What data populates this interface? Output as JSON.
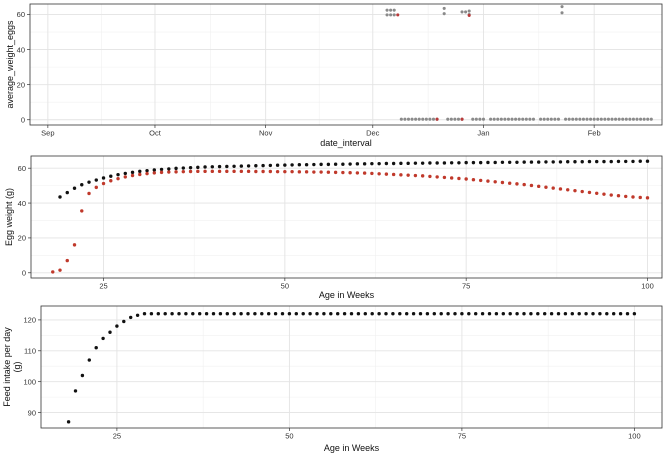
{
  "chart_data": [
    {
      "type": "scatter",
      "xlabel": "date_interval",
      "ylabel": "average_weight_eggs",
      "x_ticks": [
        "Sep",
        "Oct",
        "Nov",
        "Dec",
        "Jan",
        "Feb"
      ],
      "x_tick_dates": [
        "2023-09-01",
        "2023-10-01",
        "2023-11-01",
        "2023-12-01",
        "2024-01-01",
        "2024-02-01"
      ],
      "x_range": [
        "2023-08-27",
        "2024-02-20"
      ],
      "y_ticks": [
        "0",
        "20",
        "40",
        "60"
      ],
      "ylim": [
        -3,
        66
      ],
      "grid": true,
      "colors": {
        "black": "#222222",
        "grey": "#8a8a8a",
        "red": "#b83a3a"
      },
      "series": [
        {
          "color": "grey",
          "points": [
            [
              "2023-12-05",
              62.5
            ],
            [
              "2023-12-06",
              62.5
            ],
            [
              "2023-12-07",
              62.5
            ],
            [
              "2023-12-05",
              59.8
            ],
            [
              "2023-12-06",
              59.8
            ],
            [
              "2023-12-07",
              59.8
            ],
            [
              "2023-12-21",
              63.5
            ],
            [
              "2023-12-21",
              60.5
            ],
            [
              "2023-12-26",
              61.5
            ],
            [
              "2023-12-27",
              61.5
            ],
            [
              "2023-12-28",
              62.0
            ],
            [
              "2023-12-28",
              60.0
            ],
            [
              "2024-01-23",
              64.5
            ],
            [
              "2024-01-23",
              61.0
            ],
            [
              "2023-12-09",
              0.3
            ],
            [
              "2023-12-10",
              0.3
            ],
            [
              "2023-12-11",
              0.3
            ],
            [
              "2023-12-12",
              0.3
            ],
            [
              "2023-12-13",
              0.3
            ],
            [
              "2023-12-14",
              0.3
            ],
            [
              "2023-12-15",
              0.3
            ],
            [
              "2023-12-16",
              0.3
            ],
            [
              "2023-12-17",
              0.3
            ],
            [
              "2023-12-18",
              0.3
            ],
            [
              "2023-12-19",
              0.3
            ],
            [
              "2023-12-22",
              0.3
            ],
            [
              "2023-12-23",
              0.3
            ],
            [
              "2023-12-24",
              0.3
            ],
            [
              "2023-12-25",
              0.3
            ],
            [
              "2023-12-26",
              0.3
            ],
            [
              "2023-12-29",
              0.3
            ],
            [
              "2023-12-30",
              0.3
            ],
            [
              "2023-12-31",
              0.3
            ],
            [
              "2024-01-01",
              0.3
            ],
            [
              "2024-01-03",
              0.3
            ],
            [
              "2024-01-04",
              0.3
            ],
            [
              "2024-01-05",
              0.3
            ],
            [
              "2024-01-06",
              0.3
            ],
            [
              "2024-01-07",
              0.3
            ],
            [
              "2024-01-08",
              0.3
            ],
            [
              "2024-01-09",
              0.3
            ],
            [
              "2024-01-10",
              0.3
            ],
            [
              "2024-01-11",
              0.3
            ],
            [
              "2024-01-12",
              0.3
            ],
            [
              "2024-01-13",
              0.3
            ],
            [
              "2024-01-14",
              0.3
            ],
            [
              "2024-01-15",
              0.3
            ],
            [
              "2024-01-17",
              0.3
            ],
            [
              "2024-01-18",
              0.3
            ],
            [
              "2024-01-19",
              0.3
            ],
            [
              "2024-01-20",
              0.3
            ],
            [
              "2024-01-21",
              0.3
            ],
            [
              "2024-01-22",
              0.3
            ],
            [
              "2024-01-24",
              0.3
            ],
            [
              "2024-01-25",
              0.3
            ],
            [
              "2024-01-26",
              0.3
            ],
            [
              "2024-01-27",
              0.3
            ],
            [
              "2024-01-28",
              0.3
            ],
            [
              "2024-01-29",
              0.3
            ],
            [
              "2024-01-30",
              0.3
            ],
            [
              "2024-01-31",
              0.3
            ],
            [
              "2024-02-01",
              0.3
            ],
            [
              "2024-02-02",
              0.3
            ],
            [
              "2024-02-03",
              0.3
            ],
            [
              "2024-02-04",
              0.3
            ],
            [
              "2024-02-05",
              0.3
            ],
            [
              "2024-02-06",
              0.3
            ],
            [
              "2024-02-07",
              0.3
            ],
            [
              "2024-02-08",
              0.3
            ],
            [
              "2024-02-09",
              0.3
            ],
            [
              "2024-02-10",
              0.3
            ],
            [
              "2024-02-11",
              0.3
            ],
            [
              "2024-02-12",
              0.3
            ],
            [
              "2024-02-13",
              0.3
            ],
            [
              "2024-02-14",
              0.3
            ],
            [
              "2024-02-15",
              0.3
            ],
            [
              "2024-02-16",
              0.3
            ],
            [
              "2024-02-17",
              0.3
            ]
          ]
        },
        {
          "color": "red",
          "points": [
            [
              "2023-12-08",
              59.8
            ],
            [
              "2023-12-28",
              59.5
            ],
            [
              "2023-12-26",
              0.3
            ],
            [
              "2023-12-19",
              0.3
            ]
          ]
        }
      ]
    },
    {
      "type": "scatter",
      "xlabel": "Age in Weeks",
      "ylabel": "Egg weight (g)",
      "x_ticks": [
        25,
        50,
        75,
        100
      ],
      "xlim": [
        15,
        102
      ],
      "y_ticks": [
        0,
        20,
        40,
        60
      ],
      "ylim": [
        -3,
        67
      ],
      "grid": true,
      "colors": {
        "black": "#111111",
        "red": "#c0392b"
      },
      "series": [
        {
          "color": "black",
          "x": [
            19,
            20,
            21,
            22,
            23,
            24,
            25,
            26,
            27,
            28,
            29,
            30,
            31,
            32,
            33,
            34,
            35,
            36,
            37,
            38,
            39,
            40,
            41,
            42,
            43,
            44,
            45,
            46,
            47,
            48,
            49,
            50,
            51,
            52,
            53,
            54,
            55,
            56,
            57,
            58,
            59,
            60,
            61,
            62,
            63,
            64,
            65,
            66,
            67,
            68,
            69,
            70,
            71,
            72,
            73,
            74,
            75,
            76,
            77,
            78,
            79,
            80,
            81,
            82,
            83,
            84,
            85,
            86,
            87,
            88,
            89,
            90,
            91,
            92,
            93,
            94,
            95,
            96,
            97,
            98,
            99,
            100
          ],
          "y": [
            43.5,
            46,
            48.5,
            50.5,
            52,
            53.2,
            54.4,
            55.4,
            56.3,
            57,
            57.6,
            58.2,
            58.6,
            59,
            59.3,
            59.6,
            59.9,
            60.1,
            60.3,
            60.5,
            60.7,
            60.8,
            60.9,
            61,
            61.1,
            61.2,
            61.3,
            61.4,
            61.5,
            61.6,
            61.7,
            61.8,
            61.9,
            62,
            62,
            62.1,
            62.2,
            62.2,
            62.3,
            62.3,
            62.4,
            62.5,
            62.5,
            62.6,
            62.6,
            62.7,
            62.7,
            62.8,
            62.8,
            62.9,
            62.9,
            63,
            63,
            63,
            63.1,
            63.1,
            63.2,
            63.2,
            63.2,
            63.3,
            63.3,
            63.4,
            63.4,
            63.4,
            63.5,
            63.5,
            63.5,
            63.6,
            63.6,
            63.6,
            63.7,
            63.7,
            63.7,
            63.8,
            63.8,
            63.8,
            63.8,
            63.9,
            63.9,
            63.9,
            64,
            64
          ]
        },
        {
          "color": "red",
          "x": [
            18,
            19,
            20,
            21,
            22,
            23,
            24,
            25,
            26,
            27,
            28,
            29,
            30,
            31,
            32,
            33,
            34,
            35,
            36,
            37,
            38,
            39,
            40,
            41,
            42,
            43,
            44,
            45,
            46,
            47,
            48,
            49,
            50,
            51,
            52,
            53,
            54,
            55,
            56,
            57,
            58,
            59,
            60,
            61,
            62,
            63,
            64,
            65,
            66,
            67,
            68,
            69,
            70,
            71,
            72,
            73,
            74,
            75,
            76,
            77,
            78,
            79,
            80,
            81,
            82,
            83,
            84,
            85,
            86,
            87,
            88,
            89,
            90,
            91,
            92,
            93,
            94,
            95,
            96,
            97,
            98,
            99,
            100
          ],
          "y": [
            0.5,
            1.5,
            7,
            16,
            35.5,
            45.5,
            49,
            51.2,
            52.8,
            54,
            55,
            55.8,
            56.4,
            56.9,
            57.3,
            57.6,
            57.8,
            57.9,
            58,
            58.1,
            58.2,
            58.2,
            58.2,
            58.2,
            58.2,
            58.2,
            58.2,
            58.2,
            58.1,
            58.1,
            58.1,
            58,
            58,
            58,
            57.9,
            57.9,
            57.8,
            57.8,
            57.7,
            57.6,
            57.5,
            57.4,
            57.3,
            57.2,
            57,
            56.8,
            56.6,
            56.4,
            56.2,
            56,
            55.8,
            55.6,
            55.3,
            55,
            54.7,
            54.4,
            54.1,
            53.8,
            53.4,
            53,
            52.6,
            52.2,
            51.8,
            51.4,
            51,
            50.6,
            50.1,
            49.6,
            49.1,
            48.6,
            48.1,
            47.6,
            47.1,
            46.6,
            46.1,
            45.6,
            45.1,
            44.6,
            44.2,
            43.8,
            43.5,
            43.2,
            43
          ]
        }
      ]
    },
    {
      "type": "scatter",
      "xlabel": "Age in Weeks",
      "ylabel": [
        "Feed intake per day",
        "(g)"
      ],
      "x_ticks": [
        25,
        50,
        75,
        100
      ],
      "xlim": [
        14,
        104
      ],
      "y_ticks": [
        90,
        100,
        110,
        120
      ],
      "ylim": [
        85,
        124.5
      ],
      "grid": true,
      "colors": {
        "black": "#111111"
      },
      "series": [
        {
          "color": "black",
          "x": [
            18,
            19,
            20,
            21,
            22,
            23,
            24,
            25,
            26,
            27,
            28,
            29,
            30,
            31,
            32,
            33,
            34,
            35,
            36,
            37,
            38,
            39,
            40,
            41,
            42,
            43,
            44,
            45,
            46,
            47,
            48,
            49,
            50,
            51,
            52,
            53,
            54,
            55,
            56,
            57,
            58,
            59,
            60,
            61,
            62,
            63,
            64,
            65,
            66,
            67,
            68,
            69,
            70,
            71,
            72,
            73,
            74,
            75,
            76,
            77,
            78,
            79,
            80,
            81,
            82,
            83,
            84,
            85,
            86,
            87,
            88,
            89,
            90,
            91,
            92,
            93,
            94,
            95,
            96,
            97,
            98,
            99,
            100
          ],
          "y": [
            87,
            97,
            102,
            107,
            111,
            114,
            116,
            118,
            119.5,
            120.8,
            121.5,
            122,
            122,
            122,
            122,
            122,
            122,
            122,
            122,
            122,
            122,
            122,
            122,
            122,
            122,
            122,
            122,
            122,
            122,
            122,
            122,
            122,
            122,
            122,
            122,
            122,
            122,
            122,
            122,
            122,
            122,
            122,
            122,
            122,
            122,
            122,
            122,
            122,
            122,
            122,
            122,
            122,
            122,
            122,
            122,
            122,
            122,
            122,
            122,
            122,
            122,
            122,
            122,
            122,
            122,
            122,
            122,
            122,
            122,
            122,
            122,
            122,
            122,
            122,
            122,
            122,
            122,
            122,
            122,
            122,
            122,
            122,
            122
          ]
        }
      ]
    }
  ]
}
